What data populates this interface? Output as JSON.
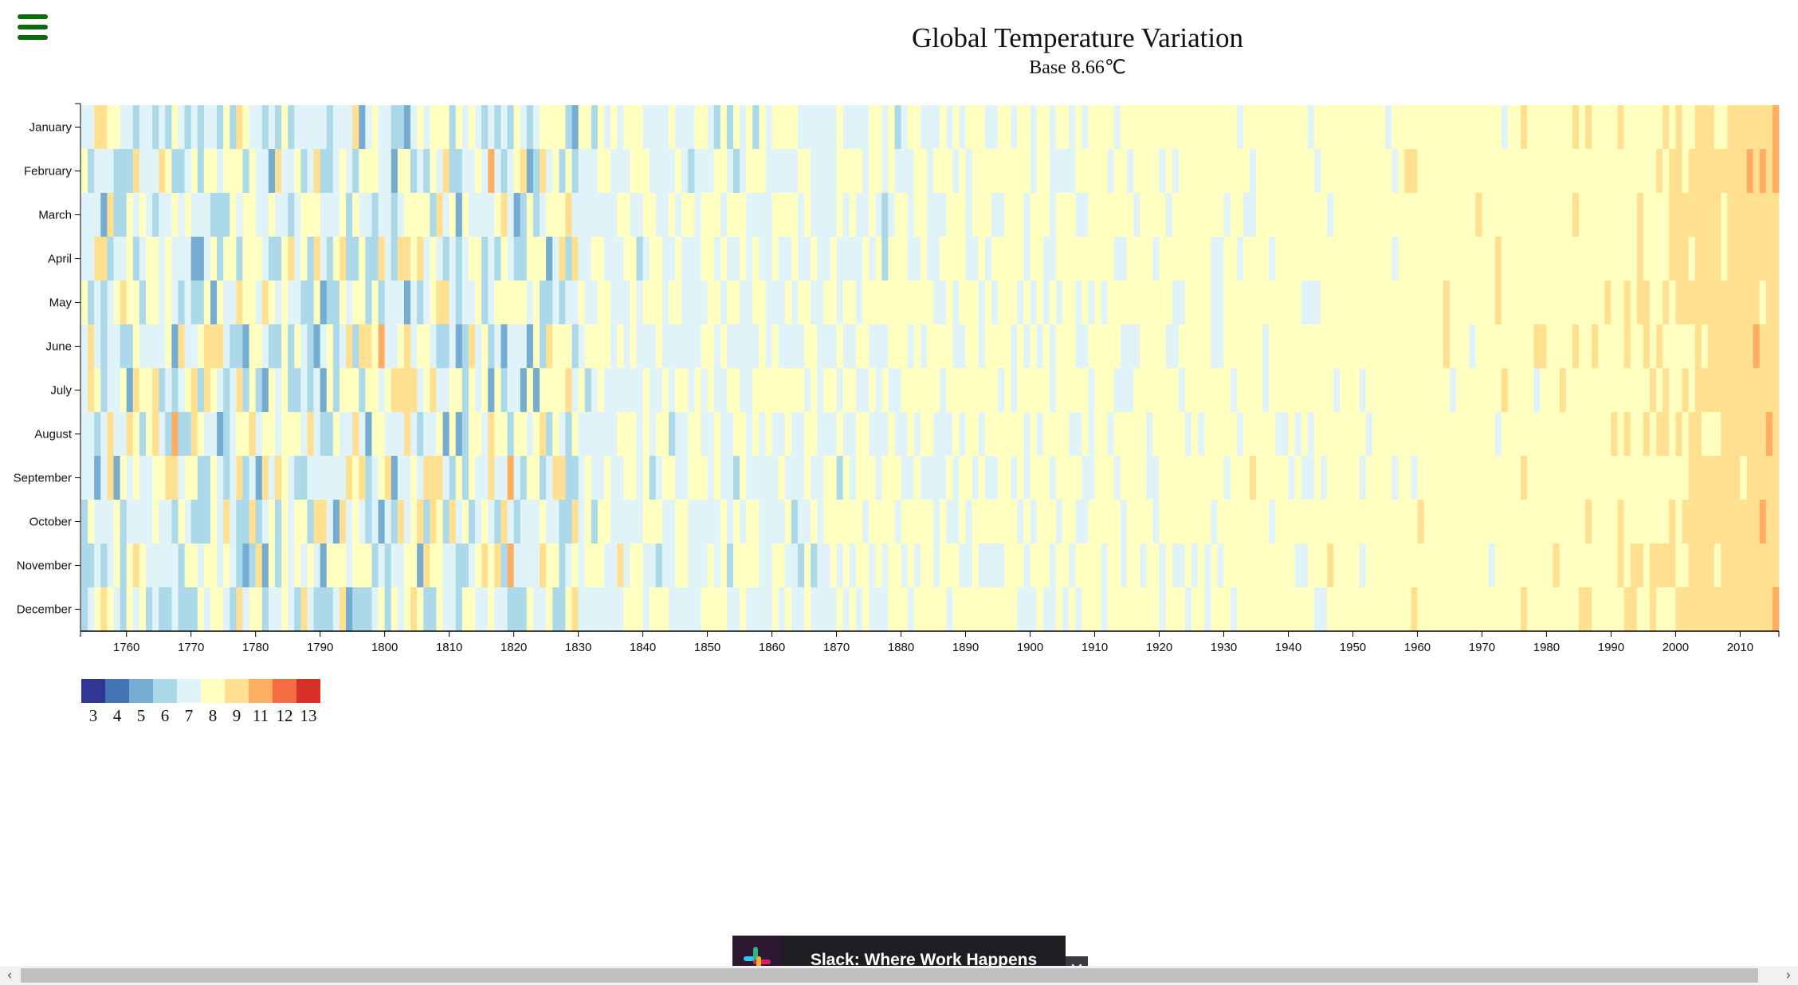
{
  "menu": {
    "icon": "hamburger-menu-icon"
  },
  "chart_data": {
    "type": "heatmap",
    "title": "Global Temperature Variation",
    "subtitle": "Base 8.66℃",
    "base_temperature": 8.66,
    "x": {
      "start_year": 1753,
      "end_year": 2015,
      "tick_years": [
        1760,
        1770,
        1780,
        1790,
        1800,
        1810,
        1820,
        1830,
        1840,
        1850,
        1860,
        1870,
        1880,
        1890,
        1900,
        1910,
        1920,
        1930,
        1940,
        1950,
        1960,
        1970,
        1980,
        1990,
        2000,
        2010
      ],
      "tick_labels": [
        "1760",
        "1770",
        "1780",
        "1790",
        "1800",
        "1810",
        "1820",
        "1830",
        "1840",
        "1850",
        "1860",
        "1870",
        "1880",
        "1890",
        "1900",
        "1910",
        "1920",
        "1930",
        "1940",
        "1950",
        "1960",
        "1970",
        "1980",
        "1990",
        "2000",
        "2010"
      ]
    },
    "y": {
      "categories": [
        "January",
        "February",
        "March",
        "April",
        "May",
        "June",
        "July",
        "August",
        "September",
        "October",
        "November",
        "December"
      ]
    },
    "legend": {
      "thresholds": [
        3,
        4,
        5,
        6,
        7,
        8,
        9,
        11,
        12,
        13
      ],
      "labels": [
        "3",
        "4",
        "5",
        "6",
        "7",
        "8",
        "9",
        "11",
        "12",
        "13"
      ],
      "colors": [
        "#313695",
        "#4575b4",
        "#74add1",
        "#abd9e9",
        "#e0f3f8",
        "#ffffbf",
        "#fee090",
        "#fdae61",
        "#f46d43",
        "#d73027"
      ],
      "extreme_color": "#a50026"
    },
    "colour_scale": [
      {
        "from": 2.8,
        "color": "#313695"
      },
      {
        "from": 3.9,
        "color": "#4575b4"
      },
      {
        "from": 5.0,
        "color": "#74add1"
      },
      {
        "from": 6.1,
        "color": "#abd9e9"
      },
      {
        "from": 7.2,
        "color": "#e0f3f8"
      },
      {
        "from": 8.3,
        "color": "#ffffbf"
      },
      {
        "from": 9.5,
        "color": "#fee090"
      },
      {
        "from": 10.6,
        "color": "#fdae61"
      },
      {
        "from": 11.7,
        "color": "#f46d43"
      },
      {
        "from": 12.8,
        "color": "#d73027"
      },
      {
        "from": 13.9,
        "color": "#a50026"
      }
    ],
    "grid": false
  },
  "ad": {
    "text": "Slack: Where Work Happens",
    "close_label": "✕",
    "logo_icon": "slack-logo-icon"
  },
  "scrollbar": {
    "left_arrow": "‹",
    "right_arrow": "›"
  }
}
